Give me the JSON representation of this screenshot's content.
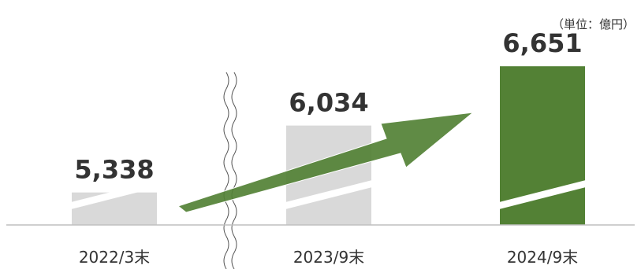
{
  "unit": "（単位：億円）",
  "colors": {
    "bar_gray": "#d9d9d9",
    "bar_green": "#538135",
    "arrow_green": "#538135",
    "axis": "#bfbfbf",
    "text": "#333333"
  },
  "chart_data": {
    "type": "bar",
    "categories": [
      "2022/3末",
      "2023/9末",
      "2024/9末"
    ],
    "values": [
      5338,
      6034,
      6651
    ],
    "value_labels": [
      "5,338",
      "6,034",
      "6,651"
    ],
    "highlight_index": 2,
    "axis_break": "between 2022/3末 and 2023/9末",
    "bars_have_break_marks": true,
    "trend_arrow": "from 2022/3末 to 2024/9末",
    "ylim": [
      5000,
      6800
    ],
    "grid": false,
    "legend": "none"
  }
}
